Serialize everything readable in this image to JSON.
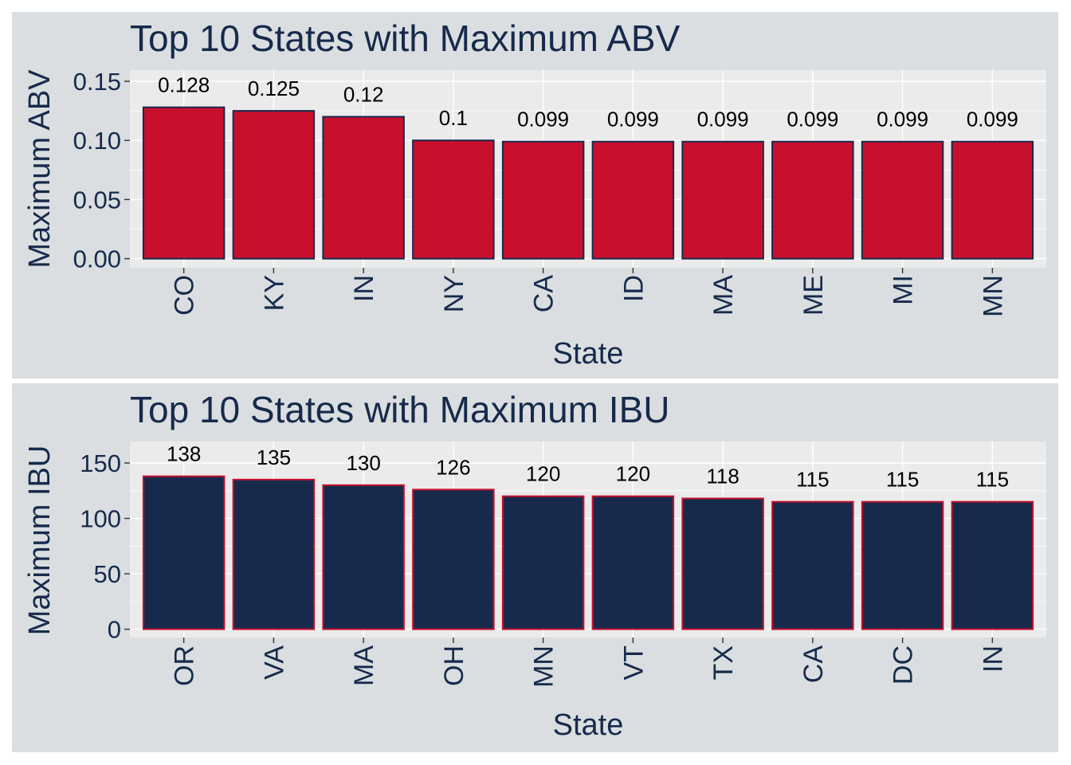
{
  "chart_data": [
    {
      "type": "bar",
      "title": "Top 10 States with Maximum ABV",
      "xlabel": "State",
      "ylabel": "Maximum ABV",
      "categories": [
        "CO",
        "KY",
        "IN",
        "NY",
        "CA",
        "ID",
        "MA",
        "ME",
        "MI",
        "MN"
      ],
      "values": [
        0.128,
        0.125,
        0.12,
        0.1,
        0.099,
        0.099,
        0.099,
        0.099,
        0.099,
        0.099
      ],
      "data_labels": [
        "0.128",
        "0.125",
        "0.12",
        "0.1",
        "0.099",
        "0.099",
        "0.099",
        "0.099",
        "0.099",
        "0.099"
      ],
      "ylim": [
        0,
        0.15
      ],
      "yticks": [
        0,
        0.05,
        0.1,
        0.15
      ],
      "ytick_labels": [
        "0.00",
        "0.05",
        "0.10",
        "0.15"
      ],
      "grid": true,
      "colors": {
        "fill": "#c8102e",
        "outline": "#172a4c"
      }
    },
    {
      "type": "bar",
      "title": "Top 10 States with Maximum IBU",
      "xlabel": "State",
      "ylabel": "Maximum IBU",
      "categories": [
        "OR",
        "VA",
        "MA",
        "OH",
        "MN",
        "VT",
        "TX",
        "CA",
        "DC",
        "IN"
      ],
      "values": [
        138,
        135,
        130,
        126,
        120,
        120,
        118,
        115,
        115,
        115
      ],
      "data_labels": [
        "138",
        "135",
        "130",
        "126",
        "120",
        "120",
        "118",
        "115",
        "115",
        "115"
      ],
      "ylim": [
        0,
        150
      ],
      "yticks": [
        0,
        50,
        100,
        150
      ],
      "ytick_labels": [
        "0",
        "50",
        "100",
        "150"
      ],
      "grid": true,
      "colors": {
        "fill": "#172a4c",
        "outline": "#c8102e"
      }
    }
  ]
}
